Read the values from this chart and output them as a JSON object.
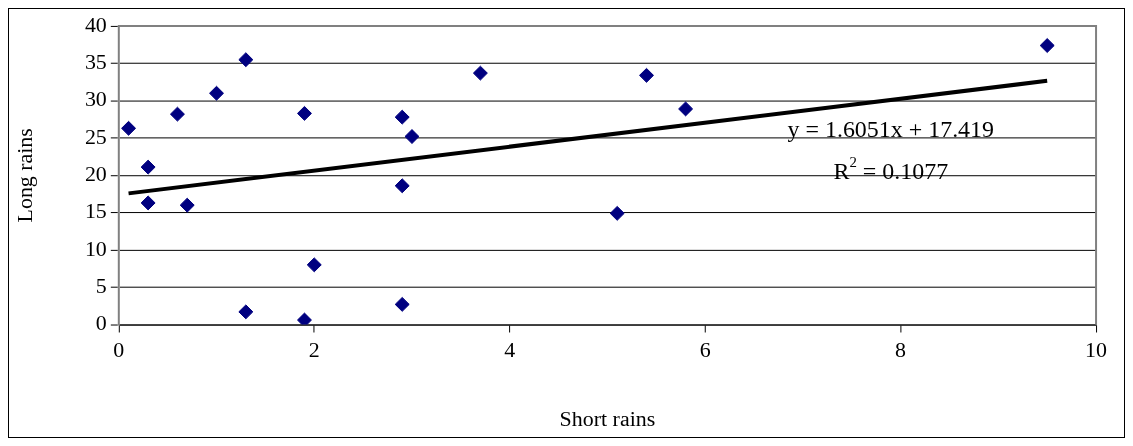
{
  "chart_data": {
    "type": "scatter",
    "xlabel": "Short rains",
    "ylabel": "Long rains",
    "xlim": [
      0,
      10
    ],
    "xticks": [
      0,
      2,
      4,
      6,
      8,
      10
    ],
    "ylim": [
      0,
      40
    ],
    "yticks": [
      0,
      5,
      10,
      15,
      20,
      25,
      30,
      35,
      40
    ],
    "grid": "y",
    "marker": "diamond",
    "legend": false,
    "series": [
      {
        "color": "#000080",
        "x": [
          0.1,
          0.3,
          0.3,
          0.6,
          0.7,
          1.0,
          1.3,
          1.3,
          1.9,
          1.9,
          2.0,
          2.9,
          2.9,
          2.9,
          3.0,
          3.7,
          5.1,
          5.4,
          5.8,
          9.5
        ],
        "values": [
          26.3,
          21.1,
          16.3,
          28.2,
          16.0,
          31.0,
          35.5,
          1.7,
          28.3,
          0.6,
          8.0,
          27.8,
          18.6,
          2.7,
          25.2,
          33.7,
          14.9,
          33.4,
          28.9,
          37.4
        ]
      },
      {
        "type": "line",
        "color": "#000000",
        "marker": "none",
        "x": [
          0.1,
          9.5
        ],
        "values": [
          17.58,
          32.67
        ]
      }
    ],
    "annotations": [
      "y = 1.6051x + 17.419",
      "R$^{2}$ = 0.1077"
    ]
  }
}
